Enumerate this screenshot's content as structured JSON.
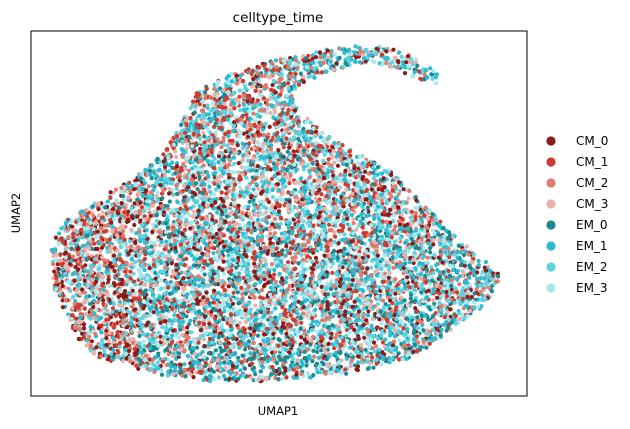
{
  "chart_data": {
    "type": "scatter",
    "title": "celltype_time",
    "xlabel": "UMAP1",
    "ylabel": "UMAP2",
    "xlim": [
      -10,
      10
    ],
    "ylim": [
      -10,
      10
    ],
    "grid": false,
    "ticks": "none",
    "legend_placement": "right",
    "point_count_approx": 9000,
    "series": [
      {
        "name": "CM_0",
        "color": "#8b1a1a"
      },
      {
        "name": "CM_1",
        "color": "#d13b2f"
      },
      {
        "name": "CM_2",
        "color": "#e07b6e"
      },
      {
        "name": "CM_3",
        "color": "#ebb0aa"
      },
      {
        "name": "EM_0",
        "color": "#1b8a90"
      },
      {
        "name": "EM_1",
        "color": "#2bbcd1"
      },
      {
        "name": "EM_2",
        "color": "#61d3e0"
      },
      {
        "name": "EM_3",
        "color": "#a9e9ee"
      }
    ]
  }
}
